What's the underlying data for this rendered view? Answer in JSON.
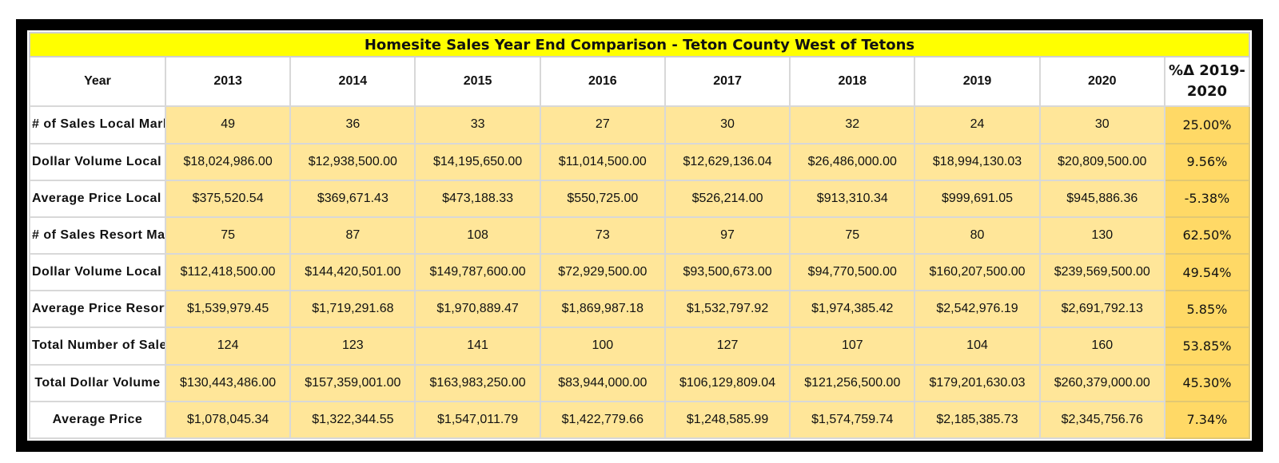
{
  "title": "Homesite Sales Year End Comparison - Teton County West of Tetons",
  "header": {
    "label": "Year",
    "years": [
      "2013",
      "2014",
      "2015",
      "2016",
      "2017",
      "2018",
      "2019",
      "2020"
    ],
    "pct_label": "%Δ 2019-2020"
  },
  "colors": {
    "title_bg": "#ffff00",
    "cell_bg": "#ffe699",
    "pct_bg": "#ffd966",
    "frame": "#000000"
  },
  "rows": [
    {
      "label": "# of Sales Local Market",
      "values": [
        "49",
        "36",
        "33",
        "27",
        "30",
        "32",
        "24",
        "30"
      ],
      "pct": "25.00%"
    },
    {
      "label": "Dollar Volume Local Market",
      "values": [
        "$18,024,986.00",
        "$12,938,500.00",
        "$14,195,650.00",
        "$11,014,500.00",
        "$12,629,136.04",
        "$26,486,000.00",
        "$18,994,130.03",
        "$20,809,500.00"
      ],
      "pct": "9.56%"
    },
    {
      "label": "Average Price Local Market",
      "values": [
        "$375,520.54",
        "$369,671.43",
        "$473,188.33",
        "$550,725.00",
        "$526,214.00",
        "$913,310.34",
        "$999,691.05",
        "$945,886.36"
      ],
      "pct": "-5.38%"
    },
    {
      "label": "# of Sales Resort Market",
      "values": [
        "75",
        "87",
        "108",
        "73",
        "97",
        "75",
        "80",
        "130"
      ],
      "pct": "62.50%"
    },
    {
      "label": "Dollar Volume Local Market",
      "values": [
        "$112,418,500.00",
        "$144,420,501.00",
        "$149,787,600.00",
        "$72,929,500.00",
        "$93,500,673.00",
        "$94,770,500.00",
        "$160,207,500.00",
        "$239,569,500.00"
      ],
      "pct": "49.54%"
    },
    {
      "label": "Average Price Resort Market",
      "values": [
        "$1,539,979.45",
        "$1,719,291.68",
        "$1,970,889.47",
        "$1,869,987.18",
        "$1,532,797.92",
        "$1,974,385.42",
        "$2,542,976.19",
        "$2,691,792.13"
      ],
      "pct": "5.85%"
    },
    {
      "label": "Total Number of Sales",
      "values": [
        "124",
        "123",
        "141",
        "100",
        "127",
        "107",
        "104",
        "160"
      ],
      "pct": "53.85%"
    },
    {
      "label": "Total Dollar Volume",
      "values": [
        "$130,443,486.00",
        "$157,359,001.00",
        "$163,983,250.00",
        "$83,944,000.00",
        "$106,129,809.04",
        "$121,256,500.00",
        "$179,201,630.03",
        "$260,379,000.00"
      ],
      "pct": "45.30%"
    },
    {
      "label": "Average Price",
      "values": [
        "$1,078,045.34",
        "$1,322,344.55",
        "$1,547,011.79",
        "$1,422,779.66",
        "$1,248,585.99",
        "$1,574,759.74",
        "$2,185,385.73",
        "$2,345,756.76"
      ],
      "pct": "7.34%"
    }
  ]
}
